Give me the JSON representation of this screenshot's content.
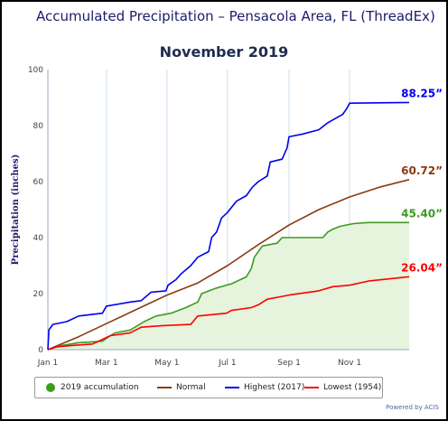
{
  "header": {
    "title": "Accumulated Precipitation – Pensacola Area, FL (ThreadEx)",
    "subtitle": "November 2019"
  },
  "footer": {
    "credit": "Powered by ACIS"
  },
  "chart_data": {
    "type": "line",
    "title": "Accumulated Precipitation – Pensacola Area, FL (ThreadEx)",
    "subtitle": "November 2019",
    "xlabel": "",
    "ylabel": "Precipitation (inches)",
    "xlim": [
      "2019-01-01",
      "2019-12-31"
    ],
    "ylim": [
      0,
      100
    ],
    "x_ticks": [
      "Jan 1",
      "Mar 1",
      "May 1",
      "Jul 1",
      "Sep 1",
      "Nov 1"
    ],
    "y_ticks": [
      0,
      20,
      40,
      60,
      80,
      100
    ],
    "grid": {
      "vertical": true,
      "horizontal": false
    },
    "legend_position": "bottom",
    "series": [
      {
        "name": "Highest (2017)",
        "color": "#0000ee",
        "end_label": "88.25”",
        "points": [
          [
            "2019-01-01",
            0
          ],
          [
            "2019-01-02",
            7
          ],
          [
            "2019-01-06",
            9
          ],
          [
            "2019-01-20",
            10
          ],
          [
            "2019-02-01",
            12
          ],
          [
            "2019-02-25",
            13
          ],
          [
            "2019-03-01",
            15.5
          ],
          [
            "2019-03-25",
            17
          ],
          [
            "2019-04-05",
            17.5
          ],
          [
            "2019-04-15",
            20.5
          ],
          [
            "2019-04-30",
            21
          ],
          [
            "2019-05-02",
            23
          ],
          [
            "2019-05-10",
            25
          ],
          [
            "2019-05-15",
            27
          ],
          [
            "2019-05-25",
            30
          ],
          [
            "2019-06-01",
            33
          ],
          [
            "2019-06-12",
            35
          ],
          [
            "2019-06-15",
            40
          ],
          [
            "2019-06-20",
            42
          ],
          [
            "2019-06-25",
            47
          ],
          [
            "2019-07-01",
            49
          ],
          [
            "2019-07-10",
            53
          ],
          [
            "2019-07-20",
            55
          ],
          [
            "2019-07-26",
            58
          ],
          [
            "2019-08-01",
            60
          ],
          [
            "2019-08-10",
            62
          ],
          [
            "2019-08-13",
            67
          ],
          [
            "2019-08-25",
            68
          ],
          [
            "2019-08-30",
            72
          ],
          [
            "2019-09-01",
            76
          ],
          [
            "2019-09-15",
            77
          ],
          [
            "2019-10-01",
            78.5
          ],
          [
            "2019-10-10",
            81
          ],
          [
            "2019-10-25",
            84
          ],
          [
            "2019-10-29",
            86
          ],
          [
            "2019-11-01",
            88
          ],
          [
            "2019-12-31",
            88.25
          ]
        ]
      },
      {
        "name": "Normal",
        "color": "#8b3a12",
        "end_label": "60.72”",
        "points": [
          [
            "2019-01-01",
            0
          ],
          [
            "2019-02-01",
            4.6
          ],
          [
            "2019-03-01",
            9.3
          ],
          [
            "2019-04-01",
            14.5
          ],
          [
            "2019-05-01",
            19.5
          ],
          [
            "2019-06-01",
            23.8
          ],
          [
            "2019-07-01",
            30
          ],
          [
            "2019-08-01",
            37.5
          ],
          [
            "2019-09-01",
            44.5
          ],
          [
            "2019-10-01",
            50
          ],
          [
            "2019-11-01",
            54.5
          ],
          [
            "2019-12-01",
            58
          ],
          [
            "2019-12-31",
            60.72
          ]
        ]
      },
      {
        "name": "Lowest (1954)",
        "color": "#ff0000",
        "end_label": "26.04”",
        "points": [
          [
            "2019-01-01",
            0
          ],
          [
            "2019-01-10",
            1
          ],
          [
            "2019-01-25",
            1.5
          ],
          [
            "2019-02-15",
            2
          ],
          [
            "2019-03-05",
            5
          ],
          [
            "2019-03-25",
            6
          ],
          [
            "2019-04-05",
            8
          ],
          [
            "2019-04-25",
            8.5
          ],
          [
            "2019-05-25",
            9
          ],
          [
            "2019-06-01",
            12
          ],
          [
            "2019-06-30",
            13
          ],
          [
            "2019-07-05",
            14
          ],
          [
            "2019-07-25",
            15
          ],
          [
            "2019-08-01",
            16
          ],
          [
            "2019-08-10",
            18
          ],
          [
            "2019-08-25",
            19
          ],
          [
            "2019-09-01",
            19.5
          ],
          [
            "2019-10-01",
            21
          ],
          [
            "2019-10-15",
            22.5
          ],
          [
            "2019-11-01",
            23
          ],
          [
            "2019-11-20",
            24.5
          ],
          [
            "2019-12-31",
            26.04
          ]
        ]
      },
      {
        "name": "2019 accumulation",
        "color": "#3d9b1f",
        "fill": "#e6f3dd",
        "end_label": "45.40”",
        "points": [
          [
            "2019-01-01",
            0
          ],
          [
            "2019-01-15",
            1.5
          ],
          [
            "2019-02-01",
            2.5
          ],
          [
            "2019-02-25",
            3
          ],
          [
            "2019-03-05",
            5
          ],
          [
            "2019-03-10",
            6
          ],
          [
            "2019-03-25",
            7
          ],
          [
            "2019-04-08",
            10
          ],
          [
            "2019-04-20",
            12
          ],
          [
            "2019-05-05",
            13
          ],
          [
            "2019-05-20",
            15
          ],
          [
            "2019-06-01",
            17
          ],
          [
            "2019-06-05",
            20
          ],
          [
            "2019-06-20",
            22
          ],
          [
            "2019-07-05",
            23.5
          ],
          [
            "2019-07-20",
            26
          ],
          [
            "2019-07-25",
            29
          ],
          [
            "2019-07-28",
            33
          ],
          [
            "2019-08-05",
            37
          ],
          [
            "2019-08-20",
            38
          ],
          [
            "2019-08-25",
            40
          ],
          [
            "2019-09-20",
            40
          ],
          [
            "2019-10-05",
            40
          ],
          [
            "2019-10-10",
            42
          ],
          [
            "2019-10-15",
            43
          ],
          [
            "2019-10-22",
            44
          ],
          [
            "2019-11-05",
            45
          ],
          [
            "2019-11-20",
            45.4
          ],
          [
            "2019-12-31",
            45.4
          ]
        ]
      }
    ]
  },
  "legend": {
    "items": [
      {
        "label": "2019 accumulation",
        "color": "#3d9b1f",
        "marker": "dot"
      },
      {
        "label": "Normal",
        "color": "#8b3a12",
        "marker": "line"
      },
      {
        "label": "Highest (2017)",
        "color": "#0000ee",
        "marker": "line"
      },
      {
        "label": "Lowest (1954)",
        "color": "#ff0000",
        "marker": "line"
      }
    ]
  }
}
